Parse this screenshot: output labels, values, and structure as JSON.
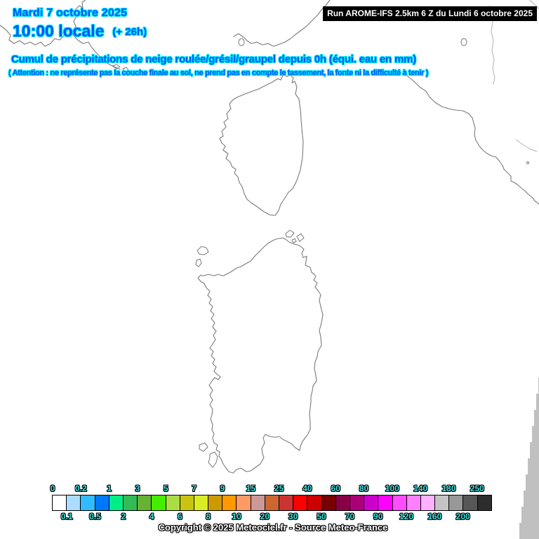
{
  "header": {
    "date": "Mardi 7 octobre 2025",
    "local_time": "10:00 locale",
    "forecast_offset": "(+ 26h)",
    "run_label": "Run AROME-IFS 2.5km 6 Z du Lundi 6 octobre 2025"
  },
  "map_title": {
    "main": "Cumul de précipitations de neige roulée/grésil/graupel depuis 0h (équi. eau en mm)",
    "warning": "( Attention : ne représente pas la couche finale au sol, ne prend pas en compte le tassement, la fonte ni la difficulté à tenir )"
  },
  "legend": {
    "unit": "mm",
    "top_labels": [
      "0",
      "0.2",
      "1",
      "3",
      "5",
      "7",
      "9",
      "15",
      "25",
      "40",
      "60",
      "80",
      "100",
      "140",
      "180",
      "250"
    ],
    "bottom_labels": [
      "0.1",
      "0.5",
      "2",
      "4",
      "6",
      "8",
      "10",
      "20",
      "30",
      "50",
      "70",
      "90",
      "120",
      "160",
      "200"
    ],
    "cell_colors": [
      "#ffffff",
      "#aaddff",
      "#33bbff",
      "#0077ff",
      "#00ee88",
      "#33bb55",
      "#66b333",
      "#44ee00",
      "#aadd44",
      "#c9c411",
      "#d9ee22",
      "#cc9900",
      "#ff9900",
      "#ff9966",
      "#cc9999",
      "#cc6633",
      "#cc3333",
      "#ff0000",
      "#cc0000",
      "#770000",
      "#880044",
      "#aa0077",
      "#cc00cc",
      "#ff00ff",
      "#ff4cff",
      "#ff80ff",
      "#ffb0ff",
      "#c4c4c4",
      "#989898",
      "#575757",
      "#2d2d2d"
    ]
  },
  "footer": {
    "copyright": "Copyright © 2025 Meteociel.fr - Source Meteo-France"
  },
  "colors": {
    "header_text": "#0057f0",
    "header_outline": "#00e6ff",
    "run_bar_bg": "#000000",
    "run_bar_text": "#ffffff",
    "legend_label": "#44e0e0",
    "legend_label_outline": "#000000",
    "coastline": "#7a7a7a",
    "border_line": "#b2b2b2",
    "out_of_domain": "#c0c0c0",
    "copyright_text": "#ffffff",
    "copyright_outline": "#000000"
  }
}
